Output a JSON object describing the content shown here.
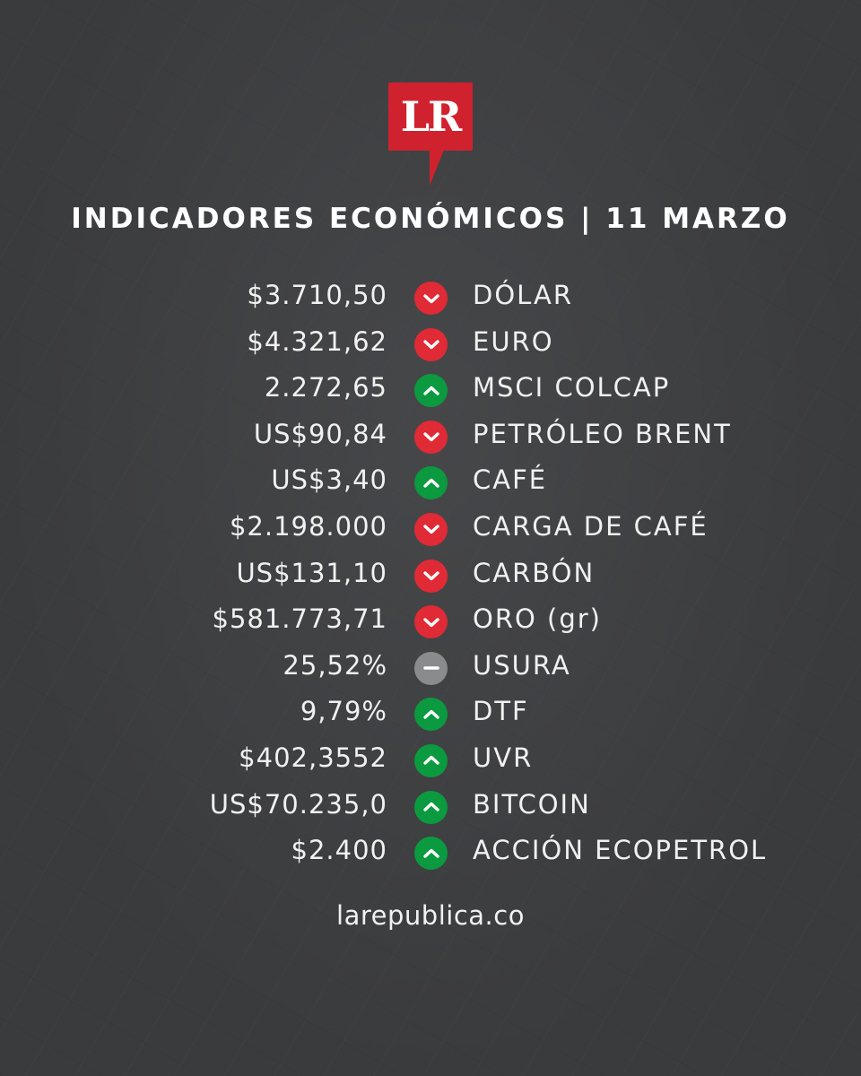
{
  "brand": {
    "logo_text": "LR",
    "logo_color": "#d0222e"
  },
  "header": {
    "title": "INDICADORES ECONÓMICOS | 11 MARZO"
  },
  "indicators": [
    {
      "value": "$3.710,50",
      "trend": "down",
      "icon": "chevron-down-icon",
      "label": "DÓLAR"
    },
    {
      "value": "$4.321,62",
      "trend": "down",
      "icon": "chevron-down-icon",
      "label": "EURO"
    },
    {
      "value": "2.272,65",
      "trend": "up",
      "icon": "chevron-up-icon",
      "label": "MSCI COLCAP"
    },
    {
      "value": "US$90,84",
      "trend": "down",
      "icon": "chevron-down-icon",
      "label": "PETRÓLEO BRENT"
    },
    {
      "value": "US$3,40",
      "trend": "up",
      "icon": "chevron-up-icon",
      "label": "CAFÉ"
    },
    {
      "value": "$2.198.000",
      "trend": "down",
      "icon": "chevron-down-icon",
      "label": "CARGA DE CAFÉ"
    },
    {
      "value": "US$131,10",
      "trend": "down",
      "icon": "chevron-down-icon",
      "label": "CARBÓN"
    },
    {
      "value": "$581.773,71",
      "trend": "down",
      "icon": "chevron-down-icon",
      "label": "ORO (gr)"
    },
    {
      "value": "25,52%",
      "trend": "flat",
      "icon": "minus-icon",
      "label": "USURA"
    },
    {
      "value": "9,79%",
      "trend": "up",
      "icon": "chevron-up-icon",
      "label": "DTF"
    },
    {
      "value": "$402,3552",
      "trend": "up",
      "icon": "chevron-up-icon",
      "label": "UVR"
    },
    {
      "value": "US$70.235,0",
      "trend": "up",
      "icon": "chevron-up-icon",
      "label": "BITCOIN"
    },
    {
      "value": "$2.400",
      "trend": "up",
      "icon": "chevron-up-icon",
      "label": "ACCIÓN ECOPETROL"
    }
  ],
  "colors": {
    "down": "#e02a35",
    "up": "#0b9a3f",
    "flat": "#8a8b8d",
    "background": "#3a3b3d"
  },
  "footer": {
    "url": "larepublica.co"
  }
}
